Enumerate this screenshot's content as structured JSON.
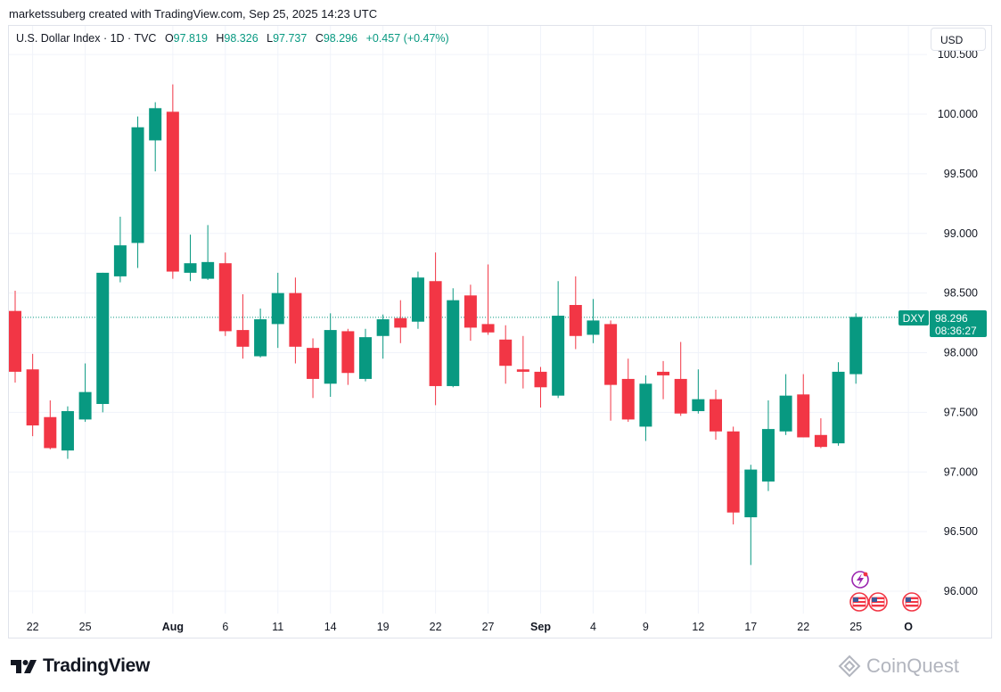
{
  "credit": "marketssuberg created with TradingView.com, Sep 25, 2025 14:23 UTC",
  "legend": {
    "symbol": "U.S. Dollar Index · 1D · TVC",
    "o_label": "O",
    "o_value": "97.819",
    "h_label": "H",
    "h_value": "98.326",
    "l_label": "L",
    "l_value": "97.737",
    "c_label": "C",
    "c_value": "98.296",
    "change": "+0.457 (+0.47%)"
  },
  "currency_button": "USD",
  "price_tag": {
    "ticker": "DXY",
    "price": "98.296",
    "countdown": "08:36:27"
  },
  "brand": "TradingView",
  "watermark": "CoinQuest",
  "colors": {
    "up": "#089981",
    "down": "#f23645",
    "grid": "#f0f3fa",
    "axis_text": "#131722",
    "last_price_line": "#089981"
  },
  "icons": [
    "tradingview-logo-icon",
    "earnings-lightning-icon",
    "us-flag-event-icon",
    "coinquest-logo-icon"
  ],
  "chart_data": {
    "type": "candlestick",
    "series_name": "DXY",
    "ylim": [
      95.8,
      100.6
    ],
    "y_ticks": [
      "100.500",
      "100.000",
      "99.500",
      "99.000",
      "98.500",
      "98.000",
      "97.500",
      "97.000",
      "96.500",
      "96.000"
    ],
    "x_ticks": [
      {
        "label": "22",
        "bar": 1
      },
      {
        "label": "25",
        "bar": 4
      },
      {
        "label": "Aug",
        "bar": 9
      },
      {
        "label": "6",
        "bar": 12
      },
      {
        "label": "11",
        "bar": 15
      },
      {
        "label": "14",
        "bar": 18
      },
      {
        "label": "19",
        "bar": 21
      },
      {
        "label": "22",
        "bar": 24
      },
      {
        "label": "27",
        "bar": 27
      },
      {
        "label": "Sep",
        "bar": 30
      },
      {
        "label": "4",
        "bar": 33
      },
      {
        "label": "9",
        "bar": 36
      },
      {
        "label": "12",
        "bar": 39
      },
      {
        "label": "17",
        "bar": 42
      },
      {
        "label": "22",
        "bar": 45
      },
      {
        "label": "25",
        "bar": 48
      },
      {
        "label": "O",
        "bar": 51
      }
    ],
    "grid": true,
    "last_price": 98.296,
    "candles": [
      {
        "o": 98.35,
        "h": 98.52,
        "l": 97.75,
        "c": 97.84
      },
      {
        "o": 97.86,
        "h": 97.99,
        "l": 97.3,
        "c": 97.39
      },
      {
        "o": 97.46,
        "h": 97.6,
        "l": 97.19,
        "c": 97.2
      },
      {
        "o": 97.18,
        "h": 97.55,
        "l": 97.11,
        "c": 97.51
      },
      {
        "o": 97.44,
        "h": 97.91,
        "l": 97.42,
        "c": 97.67
      },
      {
        "o": 97.57,
        "h": 98.67,
        "l": 97.5,
        "c": 98.67
      },
      {
        "o": 98.64,
        "h": 99.14,
        "l": 98.59,
        "c": 98.9
      },
      {
        "o": 98.92,
        "h": 99.98,
        "l": 98.71,
        "c": 99.89
      },
      {
        "o": 99.78,
        "h": 100.1,
        "l": 99.52,
        "c": 100.05
      },
      {
        "o": 100.02,
        "h": 100.25,
        "l": 98.62,
        "c": 98.68
      },
      {
        "o": 98.67,
        "h": 98.99,
        "l": 98.6,
        "c": 98.75
      },
      {
        "o": 98.62,
        "h": 99.07,
        "l": 98.61,
        "c": 98.76
      },
      {
        "o": 98.75,
        "h": 98.84,
        "l": 98.14,
        "c": 98.18
      },
      {
        "o": 98.19,
        "h": 98.49,
        "l": 97.95,
        "c": 98.05
      },
      {
        "o": 97.97,
        "h": 98.37,
        "l": 97.96,
        "c": 98.28
      },
      {
        "o": 98.24,
        "h": 98.67,
        "l": 98.04,
        "c": 98.5
      },
      {
        "o": 98.5,
        "h": 98.63,
        "l": 97.91,
        "c": 98.05
      },
      {
        "o": 98.04,
        "h": 98.12,
        "l": 97.62,
        "c": 97.78
      },
      {
        "o": 97.74,
        "h": 98.33,
        "l": 97.63,
        "c": 98.19
      },
      {
        "o": 98.18,
        "h": 98.2,
        "l": 97.73,
        "c": 97.83
      },
      {
        "o": 97.78,
        "h": 98.2,
        "l": 97.76,
        "c": 98.13
      },
      {
        "o": 98.14,
        "h": 98.32,
        "l": 97.95,
        "c": 98.28
      },
      {
        "o": 98.29,
        "h": 98.44,
        "l": 98.08,
        "c": 98.21
      },
      {
        "o": 98.26,
        "h": 98.68,
        "l": 98.2,
        "c": 98.63
      },
      {
        "o": 98.6,
        "h": 98.84,
        "l": 97.56,
        "c": 97.72
      },
      {
        "o": 97.72,
        "h": 98.54,
        "l": 97.71,
        "c": 98.44
      },
      {
        "o": 98.48,
        "h": 98.57,
        "l": 98.1,
        "c": 98.21
      },
      {
        "o": 98.24,
        "h": 98.74,
        "l": 98.15,
        "c": 98.17
      },
      {
        "o": 98.11,
        "h": 98.23,
        "l": 97.74,
        "c": 97.89
      },
      {
        "o": 97.86,
        "h": 98.14,
        "l": 97.7,
        "c": 97.84
      },
      {
        "o": 97.84,
        "h": 97.88,
        "l": 97.54,
        "c": 97.71
      },
      {
        "o": 97.64,
        "h": 98.6,
        "l": 97.62,
        "c": 98.31
      },
      {
        "o": 98.4,
        "h": 98.64,
        "l": 98.03,
        "c": 98.14
      },
      {
        "o": 98.15,
        "h": 98.45,
        "l": 98.08,
        "c": 98.27
      },
      {
        "o": 98.24,
        "h": 98.27,
        "l": 97.43,
        "c": 97.73
      },
      {
        "o": 97.78,
        "h": 97.95,
        "l": 97.42,
        "c": 97.44
      },
      {
        "o": 97.38,
        "h": 97.81,
        "l": 97.26,
        "c": 97.74
      },
      {
        "o": 97.84,
        "h": 97.93,
        "l": 97.61,
        "c": 97.81
      },
      {
        "o": 97.78,
        "h": 98.09,
        "l": 97.47,
        "c": 97.49
      },
      {
        "o": 97.51,
        "h": 97.86,
        "l": 97.49,
        "c": 97.61
      },
      {
        "o": 97.61,
        "h": 97.69,
        "l": 97.27,
        "c": 97.34
      },
      {
        "o": 97.34,
        "h": 97.38,
        "l": 96.56,
        "c": 96.66
      },
      {
        "o": 96.62,
        "h": 97.06,
        "l": 96.22,
        "c": 97.02
      },
      {
        "o": 96.92,
        "h": 97.6,
        "l": 96.84,
        "c": 97.36
      },
      {
        "o": 97.34,
        "h": 97.82,
        "l": 97.31,
        "c": 97.64
      },
      {
        "o": 97.65,
        "h": 97.82,
        "l": 97.29,
        "c": 97.29
      },
      {
        "o": 97.31,
        "h": 97.45,
        "l": 97.2,
        "c": 97.21
      },
      {
        "o": 97.24,
        "h": 97.92,
        "l": 97.22,
        "c": 97.84
      },
      {
        "o": 97.82,
        "h": 98.33,
        "l": 97.74,
        "c": 98.3
      }
    ]
  }
}
